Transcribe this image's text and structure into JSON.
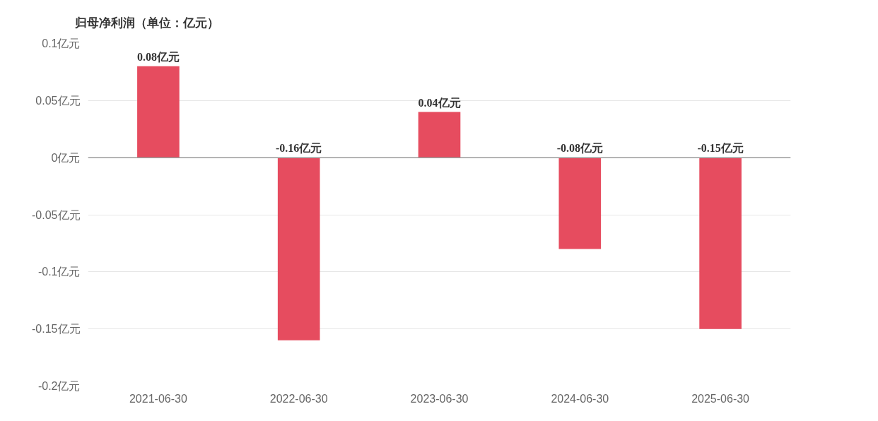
{
  "chart_data": {
    "type": "bar",
    "title": "归母净利润（单位：亿元）",
    "categories": [
      "2021-06-30",
      "2022-06-30",
      "2023-06-30",
      "2024-06-30",
      "2025-06-30"
    ],
    "values": [
      0.08,
      -0.16,
      0.04,
      -0.08,
      -0.15
    ],
    "value_labels": [
      "0.08亿元",
      "-0.16亿元",
      "0.04亿元",
      "-0.08亿元",
      "-0.15亿元"
    ],
    "color": "#e64c5f",
    "ylim": [
      -0.2,
      0.1
    ],
    "yticks": [
      {
        "value": 0.1,
        "label": "0.1亿元"
      },
      {
        "value": 0.05,
        "label": "0.05亿元"
      },
      {
        "value": 0,
        "label": "0亿元"
      },
      {
        "value": -0.05,
        "label": "-0.05亿元"
      },
      {
        "value": -0.1,
        "label": "-0.1亿元"
      },
      {
        "value": -0.15,
        "label": "-0.15亿元"
      },
      {
        "value": -0.2,
        "label": "-0.2亿元"
      }
    ],
    "grid": "y",
    "ref_lines": [
      {
        "axis": "y",
        "value": 0,
        "color": "#999999"
      }
    ]
  }
}
